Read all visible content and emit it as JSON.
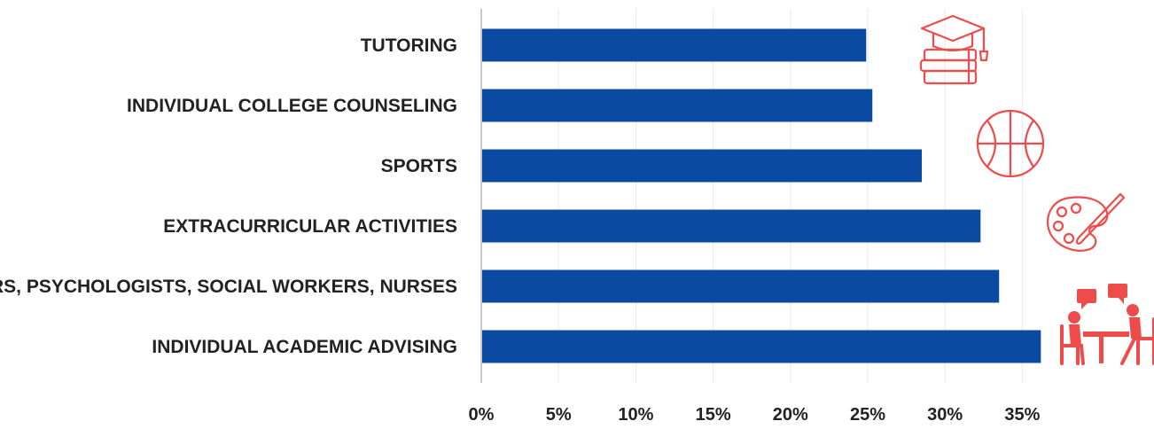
{
  "chart_data": {
    "type": "bar",
    "orientation": "horizontal",
    "categories": [
      "TUTORING",
      "INDIVIDUAL COLLEGE COUNSELING",
      "SPORTS",
      "EXTRACURRICULAR ACTIVITIES",
      "SELORS, PSYCHOLOGISTS, SOCIAL WORKERS,  NURSES",
      "INDIVIDUAL ACADEMIC ADVISING"
    ],
    "series": [
      {
        "values": [
          24.9,
          25.3,
          28.5,
          32.3,
          33.5,
          36.2
        ]
      }
    ],
    "xlim": [
      0,
      40
    ],
    "x_ticks": [
      0,
      5,
      10,
      15,
      20,
      25,
      30,
      35
    ],
    "x_tick_labels": [
      "0%",
      "5%",
      "10%",
      "15%",
      "20%",
      "25%",
      "30%",
      "35%"
    ],
    "grid": true,
    "colors": {
      "bar": "#0b4aa2",
      "icons": "#ef4b4b"
    },
    "icons": [
      "graduation-books-icon",
      "basketball-icon",
      "palette-brush-icon",
      "counseling-conversation-icon"
    ]
  }
}
